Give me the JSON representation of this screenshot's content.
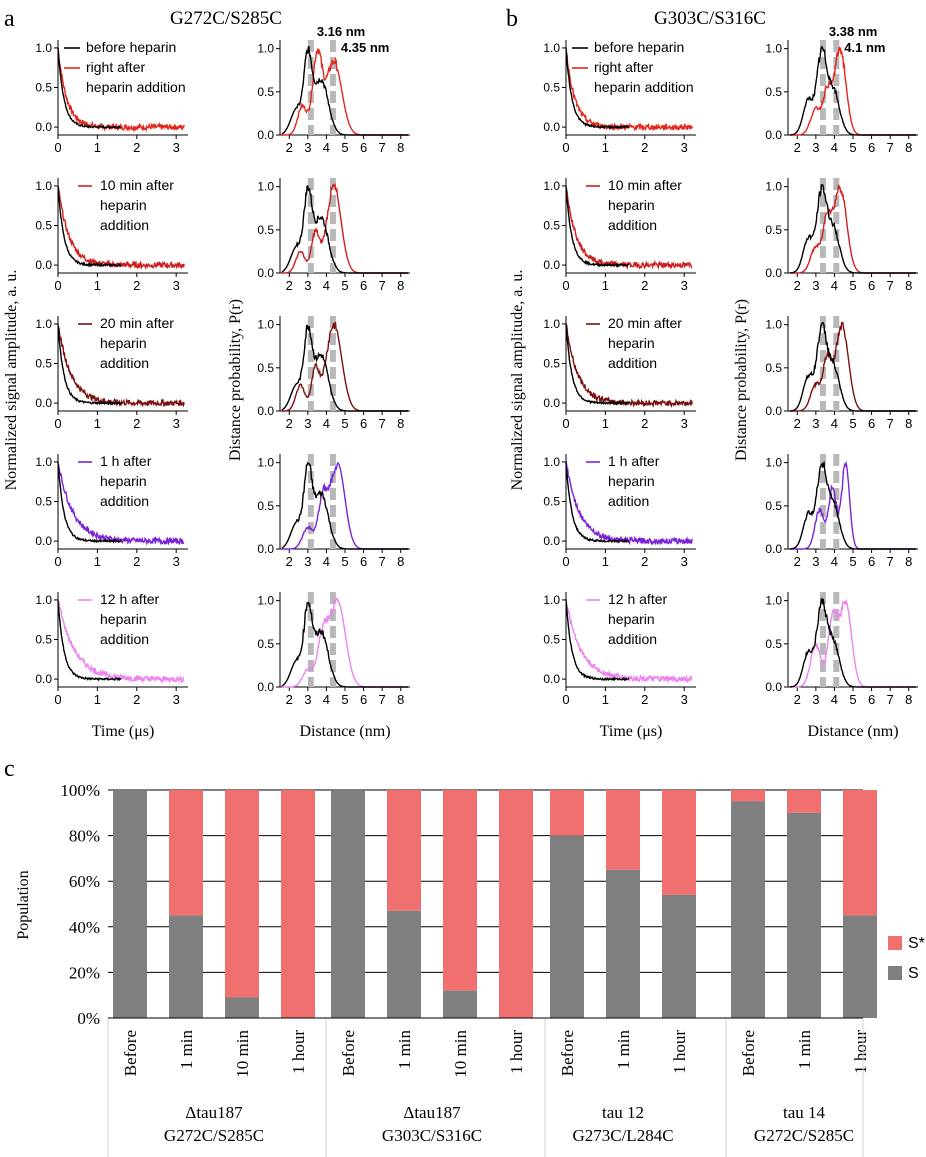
{
  "panels": {
    "a": {
      "letter": "a",
      "title": "G272C/S285C",
      "peaks": [
        "3.16 nm",
        "4.35 nm"
      ],
      "peak_x": [
        3.16,
        4.35
      ]
    },
    "b": {
      "letter": "b",
      "title": "G303C/S316C",
      "peaks": [
        "3.38 nm",
        "4.1 nm"
      ],
      "peak_x": [
        3.38,
        4.1
      ]
    },
    "c": {
      "letter": "c"
    }
  },
  "axes": {
    "time_label": "Time (μs)",
    "time_ticks": [
      "0",
      "1",
      "2",
      "3"
    ],
    "dist_label": "Distance (nm)",
    "dist_ticks": [
      "2",
      "3",
      "4",
      "5",
      "6",
      "7",
      "8"
    ],
    "y_ticks": [
      "0.0",
      "0.5",
      "1.0"
    ],
    "signal_ylabel": "Normalized signal amplitude, a. u.",
    "prob_ylabel": "Distance probability, P(r)"
  },
  "colors": {
    "before": "#000000",
    "row1": "#e4261c",
    "row2": "#d01e1e",
    "row3": "#7a1010",
    "row4": "#7b22d8",
    "row5": "#ee82ee",
    "s_star": "#f07070",
    "s": "#7f7f7f",
    "guide": "#b8b8b8"
  },
  "rows_a": [
    {
      "legend": [
        "before heparin",
        "right after",
        "heparin addition"
      ],
      "color_key": "row1"
    },
    {
      "legend": [
        "10 min after",
        "heparin",
        "addition"
      ],
      "color_key": "row2"
    },
    {
      "legend": [
        "20 min after",
        "heparin",
        "addition"
      ],
      "color_key": "row3"
    },
    {
      "legend": [
        "1 h after",
        "heparin",
        "addition"
      ],
      "color_key": "row4"
    },
    {
      "legend": [
        "12 h after",
        "heparin",
        "addition"
      ],
      "color_key": "row5"
    }
  ],
  "rows_b": [
    {
      "legend": [
        "before heparin",
        "right after",
        "heparin addition"
      ],
      "color_key": "row1"
    },
    {
      "legend": [
        "10 min after",
        "heparin",
        "addition"
      ],
      "color_key": "row2"
    },
    {
      "legend": [
        "20 min after",
        "heparin",
        "addition"
      ],
      "color_key": "row3"
    },
    {
      "legend": [
        "1 h after",
        "heparin",
        "adition"
      ],
      "color_key": "row4"
    },
    {
      "legend": [
        "12 h after",
        "heparin",
        "addition"
      ],
      "color_key": "row5"
    }
  ],
  "chart_data": [
    {
      "type": "line",
      "panel": "a",
      "xlabel": "Time (μs)",
      "ylabel": "Normalized signal amplitude, a. u.",
      "xlim": [
        0,
        3.3
      ],
      "ylim": [
        -0.1,
        1.1
      ],
      "series": [
        {
          "name": "before heparin",
          "decay": 0.15
        },
        {
          "name": "right after heparin addition",
          "decay": 0.22
        },
        {
          "name": "10 min after heparin addition",
          "decay": 0.28
        },
        {
          "name": "20 min after heparin addition",
          "decay": 0.33
        },
        {
          "name": "1 h after heparin addition",
          "decay": 0.38
        },
        {
          "name": "12 h after heparin addition",
          "decay": 0.42
        }
      ]
    },
    {
      "type": "line",
      "panel": "a",
      "xlabel": "Distance (nm)",
      "ylabel": "Distance probability, P(r)",
      "xlim": [
        1.5,
        8.5
      ],
      "ylim": [
        0,
        1.1
      ],
      "guides": [
        3.16,
        4.35
      ],
      "before_peaks": [
        [
          2.4,
          0.35,
          0.45
        ],
        [
          3.0,
          0.95,
          0.3
        ],
        [
          3.7,
          0.75,
          0.55
        ]
      ],
      "after_peaks": [
        [
          [
            2.7,
            0.35,
            0.35
          ],
          [
            3.5,
            0.95,
            0.35
          ],
          [
            4.4,
            0.9,
            0.6
          ]
        ],
        [
          [
            2.6,
            0.25,
            0.35
          ],
          [
            3.4,
            0.45,
            0.3
          ],
          [
            4.4,
            1.0,
            0.55
          ]
        ],
        [
          [
            2.6,
            0.3,
            0.35
          ],
          [
            3.4,
            0.45,
            0.3
          ],
          [
            4.4,
            1.0,
            0.6
          ]
        ],
        [
          [
            3.0,
            0.25,
            0.4
          ],
          [
            3.8,
            0.55,
            0.35
          ],
          [
            4.6,
            1.0,
            0.55
          ]
        ],
        [
          [
            3.0,
            0.2,
            0.4
          ],
          [
            3.8,
            0.55,
            0.4
          ],
          [
            4.6,
            1.0,
            0.6
          ]
        ]
      ]
    },
    {
      "type": "line",
      "panel": "b",
      "xlabel": "Time (μs)",
      "ylabel": "Normalized signal amplitude, a. u.",
      "xlim": [
        0,
        3.3
      ],
      "ylim": [
        -0.1,
        1.1
      ],
      "series": [
        {
          "name": "before heparin",
          "decay": 0.15
        },
        {
          "name": "right after heparin addition",
          "decay": 0.22
        },
        {
          "name": "10 min after heparin addition",
          "decay": 0.26
        },
        {
          "name": "20 min after heparin addition",
          "decay": 0.3
        },
        {
          "name": "1 h after heparin adition",
          "decay": 0.34
        },
        {
          "name": "12 h after heparin addition",
          "decay": 0.38
        }
      ]
    },
    {
      "type": "line",
      "panel": "b",
      "xlabel": "Distance (nm)",
      "ylabel": "Distance probability, P(r)",
      "xlim": [
        1.5,
        8.5
      ],
      "ylim": [
        0,
        1.1
      ],
      "guides": [
        3.38,
        4.1
      ],
      "before_peaks": [
        [
          2.6,
          0.45,
          0.4
        ],
        [
          3.3,
          0.95,
          0.35
        ],
        [
          3.9,
          0.6,
          0.5
        ]
      ],
      "after_peaks": [
        [
          [
            3.0,
            0.3,
            0.4
          ],
          [
            3.6,
            0.45,
            0.3
          ],
          [
            4.3,
            1.0,
            0.45
          ]
        ],
        [
          [
            3.0,
            0.3,
            0.4
          ],
          [
            3.6,
            0.55,
            0.3
          ],
          [
            4.3,
            1.0,
            0.5
          ]
        ],
        [
          [
            3.0,
            0.3,
            0.4
          ],
          [
            3.6,
            0.55,
            0.3
          ],
          [
            4.4,
            1.0,
            0.5
          ]
        ],
        [
          [
            3.2,
            0.45,
            0.35
          ],
          [
            3.9,
            0.7,
            0.3
          ],
          [
            4.6,
            1.0,
            0.3
          ]
        ],
        [
          [
            3.0,
            0.5,
            0.4
          ],
          [
            3.9,
            0.8,
            0.35
          ],
          [
            4.6,
            1.0,
            0.45
          ]
        ]
      ]
    },
    {
      "type": "bar",
      "panel": "c",
      "stacked": true,
      "ylabel": "Population",
      "ylim": [
        0,
        100
      ],
      "y_ticks": [
        "0%",
        "20%",
        "40%",
        "60%",
        "80%",
        "100%"
      ],
      "legend": {
        "position": "right",
        "items": [
          "S*",
          "S"
        ]
      },
      "groups": [
        {
          "label": [
            "Δtau187",
            "G272C/S285C"
          ],
          "categories": [
            "Before",
            "1 min",
            "10 min",
            "1 hour"
          ],
          "s": [
            100,
            45,
            9,
            0
          ]
        },
        {
          "label": [
            "Δtau187",
            "G303C/S316C"
          ],
          "categories": [
            "Before",
            "1 min",
            "10 min",
            "1 hour"
          ],
          "s": [
            100,
            47,
            12,
            0
          ]
        },
        {
          "label": [
            "tau 12",
            "G273C/L284C"
          ],
          "categories": [
            "Before",
            "1 min",
            "1 hour"
          ],
          "s": [
            80,
            65,
            54
          ]
        },
        {
          "label": [
            "tau 14",
            "G272C/S285C"
          ],
          "categories": [
            "Before",
            "1 min",
            "1 hour"
          ],
          "s": [
            95,
            90,
            45
          ]
        }
      ]
    }
  ]
}
